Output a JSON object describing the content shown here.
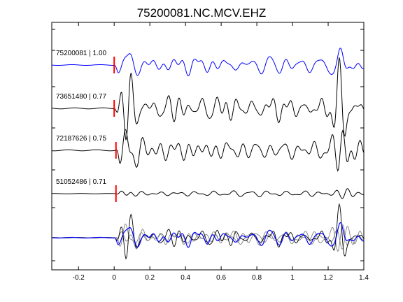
{
  "chart_data": {
    "type": "line",
    "title": "75200081.NC.MCV.EHZ",
    "xlabel": "",
    "ylabel": "",
    "xlim": [
      -0.35,
      1.4
    ],
    "xticks": [
      -0.2,
      0,
      0.2,
      0.4,
      0.6,
      0.8,
      1,
      1.2,
      1.4
    ],
    "xtick_labels": [
      "-0.2",
      "0",
      "0.2",
      "0.4",
      "0.6",
      "0.8",
      "1",
      "1.2",
      "1.4"
    ],
    "grid": false,
    "legend": "none",
    "traces": [
      {
        "label": "75200081 | 1.00",
        "color": "#0000ff",
        "pick_time": 0.0,
        "amplitude": 1.0,
        "seed": 11
      },
      {
        "label": "73651480 | 0.77",
        "color": "#000000",
        "pick_time": 0.0,
        "amplitude": 1.1,
        "seed": 23
      },
      {
        "label": "72187626 | 0.75",
        "color": "#000000",
        "pick_time": 0.01,
        "amplitude": 1.1,
        "seed": 37
      },
      {
        "label": "51052486 | 0.71",
        "color": "#000000",
        "pick_time": 0.01,
        "amplitude": 0.35,
        "seed": 53
      }
    ],
    "stack": {
      "label": "",
      "colors": [
        "#0000ff",
        "#000000",
        "#808080"
      ]
    },
    "pick_color": "#ff0000"
  }
}
